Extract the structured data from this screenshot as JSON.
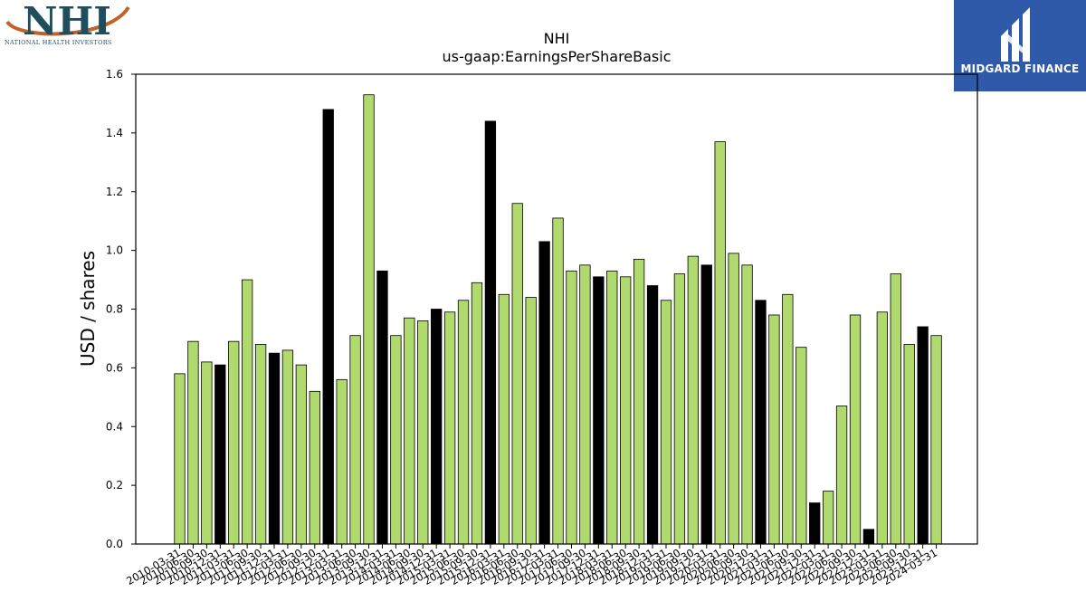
{
  "logos": {
    "left": {
      "mark": "NHI",
      "tagline": "NATIONAL HEALTH INVESTORS",
      "colors": {
        "text": "#1f4e5f",
        "swoosh": "#c0622a"
      }
    },
    "right": {
      "mark": "midgard-m-icon",
      "name": "MIDGARD FINANCE",
      "colors": {
        "background": "#2f5aaa",
        "text": "#ffffff"
      }
    }
  },
  "chart_data": {
    "type": "bar",
    "title": "NHI",
    "subtitle": "us-gaap:EarningsPerShareBasic",
    "ylabel": "USD / shares",
    "xlabel": "",
    "ylim": [
      0,
      1.6
    ],
    "yticks": [
      "0.0",
      "0.2",
      "0.4",
      "0.6",
      "0.8",
      "1.0",
      "1.2",
      "1.4",
      "1.6"
    ],
    "grid": false,
    "colors": {
      "quarter": "#b0d96e",
      "year_end": "#000000",
      "edge": "#000000"
    },
    "categories": [
      "2010-03-31",
      "2010-06-30",
      "2010-09-30",
      "2010-12-31",
      "2011-03-31",
      "2011-06-30",
      "2011-09-30",
      "2011-12-31",
      "2012-03-31",
      "2012-06-30",
      "2012-09-30",
      "2012-12-31",
      "2013-03-31",
      "2013-06-30",
      "2013-09-30",
      "2013-12-31",
      "2014-03-31",
      "2014-06-30",
      "2014-09-30",
      "2014-12-31",
      "2015-03-31",
      "2015-06-30",
      "2015-09-30",
      "2015-12-31",
      "2016-03-31",
      "2016-06-30",
      "2016-09-30",
      "2016-12-31",
      "2017-03-31",
      "2017-06-30",
      "2017-09-30",
      "2017-12-31",
      "2018-03-31",
      "2018-06-30",
      "2018-09-30",
      "2018-12-31",
      "2019-03-31",
      "2019-06-30",
      "2019-09-30",
      "2019-12-31",
      "2020-03-31",
      "2020-06-30",
      "2020-09-30",
      "2020-12-31",
      "2021-03-31",
      "2021-06-30",
      "2021-09-30",
      "2021-12-31",
      "2022-03-31",
      "2022-06-30",
      "2022-09-30",
      "2022-12-31",
      "2023-03-31",
      "2023-06-30",
      "2023-09-30",
      "2023-12-31",
      "2024-03-31"
    ],
    "values": [
      0.58,
      0.69,
      0.62,
      0.61,
      0.69,
      0.9,
      0.68,
      0.65,
      0.66,
      0.61,
      0.52,
      1.48,
      0.56,
      0.71,
      1.53,
      0.93,
      0.71,
      0.77,
      0.76,
      0.8,
      0.79,
      0.83,
      0.89,
      1.44,
      0.85,
      1.16,
      0.84,
      1.03,
      1.11,
      0.93,
      0.95,
      0.91,
      0.93,
      0.91,
      0.97,
      0.88,
      0.83,
      0.92,
      0.98,
      0.95,
      1.37,
      0.99,
      0.95,
      0.83,
      0.78,
      0.85,
      0.67,
      0.14,
      0.18,
      0.47,
      0.78,
      0.05,
      0.79,
      0.92,
      0.68,
      0.74,
      0.71
    ],
    "highlight_index": [
      3,
      7,
      11,
      15,
      19,
      23,
      27,
      31,
      35,
      39,
      43,
      47,
      51,
      55
    ]
  }
}
